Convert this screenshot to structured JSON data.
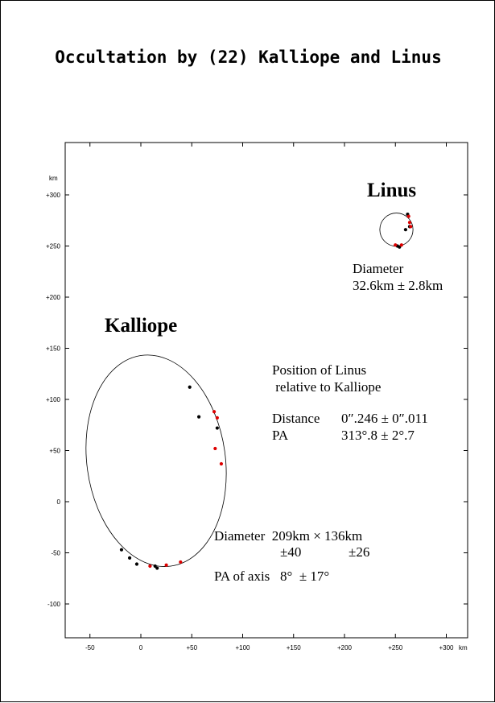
{
  "title": "Occultation by (22) Kalliope and Linus",
  "chart_data": {
    "type": "scatter",
    "xlabel": "km",
    "ylabel": "km",
    "xlim": [
      -75,
      320
    ],
    "ylim": [
      -135,
      350
    ],
    "x_ticks": [
      -50,
      0,
      50,
      100,
      150,
      200,
      250,
      300
    ],
    "x_tick_labels": [
      "-50",
      "0",
      "+50",
      "+100",
      "+150",
      "+200",
      "+250",
      "+300"
    ],
    "y_ticks": [
      -100,
      -50,
      0,
      50,
      100,
      150,
      200,
      250,
      300
    ],
    "y_tick_labels": [
      "-100",
      "-50",
      "0",
      "+50",
      "+100",
      "+150",
      "+200",
      "+250",
      "+300"
    ],
    "grid": false,
    "kalliope": {
      "label": "Kalliope",
      "ellipse": {
        "center": [
          15,
          40
        ],
        "semi_axes": [
          68,
          104
        ],
        "tilt_deg": 8
      },
      "points": [
        {
          "x": 48,
          "y": 112,
          "color": "#000000"
        },
        {
          "x": 57,
          "y": 83,
          "color": "#000000"
        },
        {
          "x": 75,
          "y": 72,
          "color": "#000000"
        },
        {
          "x": 72,
          "y": 88,
          "color": "#dd0000"
        },
        {
          "x": 75,
          "y": 82,
          "color": "#dd0000"
        },
        {
          "x": 73,
          "y": 52,
          "color": "#dd0000"
        },
        {
          "x": 79,
          "y": 37,
          "color": "#dd0000"
        },
        {
          "x": -19,
          "y": -47,
          "color": "#000000"
        },
        {
          "x": -11,
          "y": -55,
          "color": "#000000"
        },
        {
          "x": -4,
          "y": -61,
          "color": "#000000"
        },
        {
          "x": 9,
          "y": -63,
          "color": "#dd0000"
        },
        {
          "x": 14,
          "y": -63,
          "color": "#000000"
        },
        {
          "x": 16,
          "y": -65,
          "color": "#000000"
        },
        {
          "x": 25,
          "y": -62,
          "color": "#dd0000"
        },
        {
          "x": 39,
          "y": -59,
          "color": "#dd0000"
        }
      ],
      "diameter_line": "Diameter  209km × 136km",
      "error_a": "±40",
      "error_b": "±26",
      "pa_line": "PA of axis   8°  ± 17°"
    },
    "linus": {
      "label": "Linus",
      "circle": {
        "center": [
          251,
          266
        ],
        "radius": 16.3
      },
      "points": [
        {
          "x": 262,
          "y": 281,
          "color": "#000000"
        },
        {
          "x": 263,
          "y": 279,
          "color": "#dd0000"
        },
        {
          "x": 264,
          "y": 273,
          "color": "#dd0000"
        },
        {
          "x": 264,
          "y": 269,
          "color": "#000000"
        },
        {
          "x": 260,
          "y": 266,
          "color": "#000000"
        },
        {
          "x": 265,
          "y": 269,
          "color": "#dd0000"
        },
        {
          "x": 252,
          "y": 250,
          "color": "#000000"
        },
        {
          "x": 250,
          "y": 251,
          "color": "#dd0000"
        },
        {
          "x": 254,
          "y": 249,
          "color": "#000000"
        },
        {
          "x": 256,
          "y": 251,
          "color": "#dd0000"
        }
      ],
      "diameter_line1": "Diameter",
      "diameter_line2": "32.6km ± 2.8km"
    },
    "position": {
      "line1": "Position of Linus",
      "line2": " relative to Kalliope",
      "distance_label": "Distance",
      "distance_value": "0″.246 ± 0″.011",
      "pa_label": "PA",
      "pa_value": "313°.8 ± 2°.7"
    }
  }
}
